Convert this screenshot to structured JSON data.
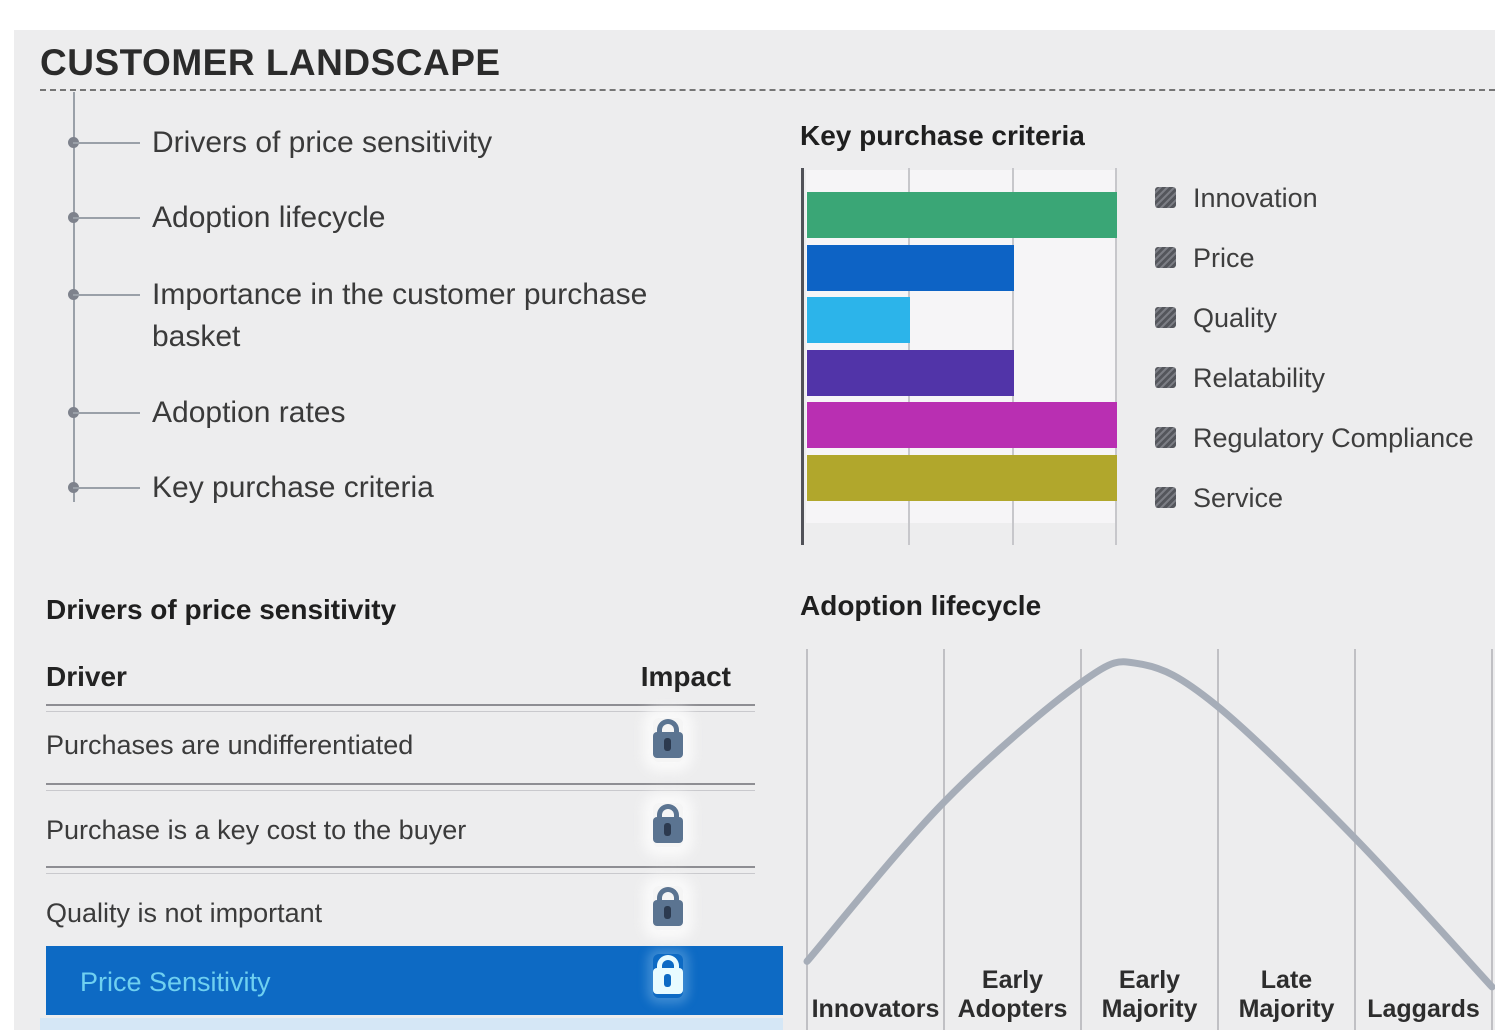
{
  "page": {
    "title": "CUSTOMER LANDSCAPE",
    "background_color": "#ededee"
  },
  "agenda": {
    "items": [
      "Drivers of price sensitivity",
      "Adoption lifecycle",
      "Importance in the customer purchase basket",
      "Adoption rates",
      "Key purchase criteria"
    ]
  },
  "drivers_table": {
    "title": "Drivers of price sensitivity",
    "columns": [
      "Driver",
      "Impact"
    ],
    "rows": [
      {
        "driver": "Purchases are undifferentiated",
        "impact_icon": "lock-icon",
        "selected": false
      },
      {
        "driver": "Purchase is a key cost to the buyer",
        "impact_icon": "lock-icon",
        "selected": false
      },
      {
        "driver": "Quality is not important",
        "impact_icon": "lock-icon",
        "selected": false
      },
      {
        "driver": "Price Sensitivity",
        "impact_icon": "lock-icon",
        "selected": true
      }
    ],
    "lock_color": "#5b7491",
    "lock_keyhole_color": "#2c3a4f",
    "selected_row_color": "#0d6ac4",
    "selected_text_color": "#6fd0f0",
    "selected_lock_color": "#e8fbff",
    "selected_lock_keyhole_color": "#0d6ac4"
  },
  "chart_data": [
    {
      "type": "bar",
      "orientation": "horizontal",
      "title": "Key purchase criteria",
      "categories": [
        "Innovation",
        "Price",
        "Quality",
        "Relatability",
        "Regulatory Compliance",
        "Service"
      ],
      "values": [
        3,
        2,
        1,
        2,
        3,
        3
      ],
      "xlim": [
        0,
        3
      ],
      "gridline_ticks": [
        1,
        2,
        3
      ],
      "grid": true,
      "legend_position": "right",
      "legend_marker": "hatched-square",
      "colors": [
        "#3aa676",
        "#0d63c5",
        "#2cb4ea",
        "#5134a8",
        "#b92fb2",
        "#b1a72c"
      ]
    },
    {
      "type": "line",
      "subtype": "bell-curve",
      "title": "Adoption lifecycle",
      "categories": [
        "Innovators",
        "Early Adopters",
        "Early Majority",
        "Late Majority",
        "Laggards"
      ],
      "curve_points_frac": [
        [
          0.0,
          0.82
        ],
        [
          0.201,
          0.4
        ],
        [
          0.401,
          0.087
        ],
        [
          0.486,
          0.039
        ],
        [
          0.597,
          0.147
        ],
        [
          0.798,
          0.493
        ],
        [
          1.0,
          0.887
        ]
      ],
      "peak_stage": "Early Majority",
      "line_color": "#a6adb8",
      "grid": true,
      "gridline_count": 6
    }
  ]
}
